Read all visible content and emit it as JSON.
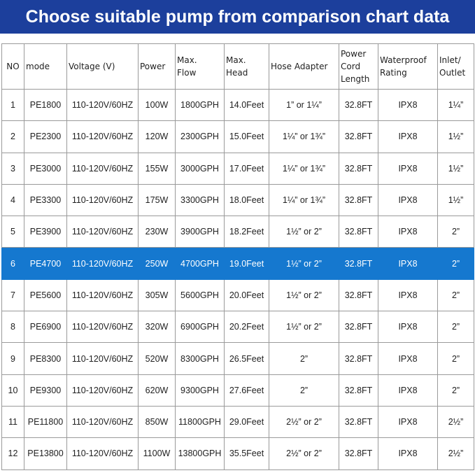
{
  "header": {
    "title": "Choose suitable pump from comparison chart data"
  },
  "table": {
    "columns": [
      [
        "NO"
      ],
      [
        "mode"
      ],
      [
        "Voltage (V)"
      ],
      [
        "Power"
      ],
      [
        "Max.",
        "Flow"
      ],
      [
        "Max.",
        "Head"
      ],
      [
        "Hose Adapter"
      ],
      [
        "Power",
        "Cord",
        "Length"
      ],
      [
        "Waterproof",
        "Rating"
      ],
      [
        "Inlet/",
        "Outlet"
      ]
    ],
    "highlighted_row": 5,
    "rows": [
      [
        "1",
        "PE1800",
        "110-120V/60HZ",
        "100W",
        "1800GPH",
        "14.0Feet",
        "1” or 1¼”",
        "32.8FT",
        "IPX8",
        "1¼”"
      ],
      [
        "2",
        "PE2300",
        "110-120V/60HZ",
        "120W",
        "2300GPH",
        "15.0Feet",
        "1¼” or 1¾”",
        "32.8FT",
        "IPX8",
        "1½”"
      ],
      [
        "3",
        "PE3000",
        "110-120V/60HZ",
        "155W",
        "3000GPH",
        "17.0Feet",
        "1¼” or 1¾”",
        "32.8FT",
        "IPX8",
        "1½”"
      ],
      [
        "4",
        "PE3300",
        "110-120V/60HZ",
        "175W",
        "3300GPH",
        "18.0Feet",
        "1¼” or 1¾”",
        "32.8FT",
        "IPX8",
        "1½”"
      ],
      [
        "5",
        "PE3900",
        "110-120V/60HZ",
        "230W",
        "3900GPH",
        "18.2Feet",
        "1½” or 2”",
        "32.8FT",
        "IPX8",
        "2”"
      ],
      [
        "6",
        "PE4700",
        "110-120V/60HZ",
        "250W",
        "4700GPH",
        "19.0Feet",
        "1½” or 2”",
        "32.8FT",
        "IPX8",
        "2”"
      ],
      [
        "7",
        "PE5600",
        "110-120V/60HZ",
        "305W",
        "5600GPH",
        "20.0Feet",
        "1½” or 2”",
        "32.8FT",
        "IPX8",
        "2”"
      ],
      [
        "8",
        "PE6900",
        "110-120V/60HZ",
        "320W",
        "6900GPH",
        "20.2Feet",
        "1½” or 2”",
        "32.8FT",
        "IPX8",
        "2”"
      ],
      [
        "9",
        "PE8300",
        "110-120V/60HZ",
        "520W",
        "8300GPH",
        "26.5Feet",
        "2”",
        "32.8FT",
        "IPX8",
        "2”"
      ],
      [
        "10",
        "PE9300",
        "110-120V/60HZ",
        "620W",
        "9300GPH",
        "27.6Feet",
        "2”",
        "32.8FT",
        "IPX8",
        "2”"
      ],
      [
        "11",
        "PE11800",
        "110-120V/60HZ",
        "850W",
        "11800GPH",
        "29.0Feet",
        "2½” or 2”",
        "32.8FT",
        "IPX8",
        "2½”"
      ],
      [
        "12",
        "PE13800",
        "110-120V/60HZ",
        "1100W",
        "13800GPH",
        "35.5Feet",
        "2½” or 2”",
        "32.8FT",
        "IPX8",
        "2½”"
      ]
    ]
  }
}
